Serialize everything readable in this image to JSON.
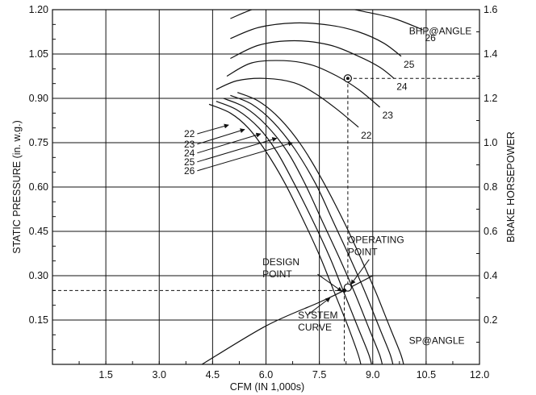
{
  "chart_data": {
    "type": "line",
    "xlabel": "CFM (IN 1,000s)",
    "ylabel_left": "STATIC PRESSURE (in. w.g.)",
    "ylabel_right": "BRAKE HORSEPOWER",
    "xlim": [
      0,
      12
    ],
    "ylim_left": [
      0,
      1.2
    ],
    "ylim_right": [
      0,
      1.6
    ],
    "x_ticks": [
      "1.5",
      "3.0",
      "4.5",
      "6.0",
      "7.5",
      "9.0",
      "10.5",
      "12.0"
    ],
    "y_ticks_left": [
      "0.15",
      "0.30",
      "0.45",
      "0.60",
      "0.75",
      "0.90",
      "1.05",
      "1.20"
    ],
    "y_ticks_right": [
      "0.2",
      "0.4",
      "0.6",
      "0.8",
      "1.0",
      "1.2",
      "1.4",
      "1.6"
    ],
    "grid": true,
    "sp_title": "SP@ANGLE",
    "bhp_title": "BHP@ANGLE",
    "sp_labels": [
      "22",
      "23",
      "24",
      "25",
      "26"
    ],
    "sp_series": [
      {
        "name": "22",
        "points": [
          [
            4.4,
            0.88
          ],
          [
            5.0,
            0.85
          ],
          [
            5.5,
            0.8
          ],
          [
            6.0,
            0.72
          ],
          [
            6.5,
            0.62
          ],
          [
            7.0,
            0.5
          ],
          [
            7.5,
            0.37
          ],
          [
            7.9,
            0.25
          ],
          [
            8.3,
            0.13
          ],
          [
            8.6,
            0.03
          ],
          [
            8.7,
            -0.02
          ]
        ]
      },
      {
        "name": "23",
        "points": [
          [
            4.6,
            0.89
          ],
          [
            5.2,
            0.86
          ],
          [
            5.8,
            0.8
          ],
          [
            6.3,
            0.72
          ],
          [
            6.8,
            0.61
          ],
          [
            7.3,
            0.49
          ],
          [
            7.8,
            0.36
          ],
          [
            8.2,
            0.24
          ],
          [
            8.6,
            0.12
          ],
          [
            8.9,
            0.03
          ],
          [
            9.0,
            -0.02
          ]
        ]
      },
      {
        "name": "24",
        "points": [
          [
            4.8,
            0.9
          ],
          [
            5.4,
            0.87
          ],
          [
            6.0,
            0.81
          ],
          [
            6.6,
            0.72
          ],
          [
            7.1,
            0.61
          ],
          [
            7.6,
            0.48
          ],
          [
            8.1,
            0.35
          ],
          [
            8.5,
            0.24
          ],
          [
            8.9,
            0.12
          ],
          [
            9.2,
            0.03
          ],
          [
            9.3,
            -0.02
          ]
        ]
      },
      {
        "name": "25",
        "points": [
          [
            5.0,
            0.91
          ],
          [
            5.6,
            0.88
          ],
          [
            6.2,
            0.82
          ],
          [
            6.8,
            0.73
          ],
          [
            7.4,
            0.61
          ],
          [
            7.9,
            0.48
          ],
          [
            8.4,
            0.35
          ],
          [
            8.8,
            0.24
          ],
          [
            9.2,
            0.12
          ],
          [
            9.5,
            0.03
          ],
          [
            9.6,
            -0.02
          ]
        ]
      },
      {
        "name": "26",
        "points": [
          [
            5.2,
            0.92
          ],
          [
            5.8,
            0.89
          ],
          [
            6.4,
            0.83
          ],
          [
            7.0,
            0.74
          ],
          [
            7.6,
            0.62
          ],
          [
            8.2,
            0.48
          ],
          [
            8.7,
            0.35
          ],
          [
            9.1,
            0.24
          ],
          [
            9.5,
            0.12
          ],
          [
            9.8,
            0.03
          ],
          [
            9.9,
            -0.02
          ]
        ]
      }
    ],
    "bhp_series": [
      {
        "name": "22",
        "points": [
          [
            4.6,
            1.24
          ],
          [
            5.2,
            1.28
          ],
          [
            6.0,
            1.29
          ],
          [
            6.8,
            1.27
          ],
          [
            7.4,
            1.22
          ],
          [
            8.0,
            1.15
          ],
          [
            8.6,
            1.07
          ]
        ]
      },
      {
        "name": "23",
        "points": [
          [
            4.9,
            1.3
          ],
          [
            5.6,
            1.36
          ],
          [
            6.5,
            1.37
          ],
          [
            7.3,
            1.35
          ],
          [
            8.0,
            1.3
          ],
          [
            8.6,
            1.24
          ],
          [
            9.2,
            1.16
          ]
        ]
      },
      {
        "name": "24",
        "points": [
          [
            5.0,
            1.38
          ],
          [
            5.8,
            1.44
          ],
          [
            6.8,
            1.46
          ],
          [
            7.8,
            1.44
          ],
          [
            8.6,
            1.39
          ],
          [
            9.2,
            1.34
          ],
          [
            9.6,
            1.29
          ]
        ]
      },
      {
        "name": "25",
        "points": [
          [
            5.0,
            1.47
          ],
          [
            5.8,
            1.52
          ],
          [
            6.8,
            1.54
          ],
          [
            7.8,
            1.53
          ],
          [
            8.6,
            1.5
          ],
          [
            9.3,
            1.45
          ],
          [
            9.8,
            1.39
          ]
        ]
      },
      {
        "name": "26",
        "points": [
          [
            5.0,
            1.56
          ],
          [
            5.8,
            1.61
          ],
          [
            6.8,
            1.63
          ],
          [
            7.8,
            1.62
          ],
          [
            8.8,
            1.59
          ],
          [
            9.6,
            1.56
          ],
          [
            10.4,
            1.51
          ]
        ]
      }
    ],
    "system_curve": [
      [
        4.2,
        0.0
      ],
      [
        6.0,
        0.13
      ],
      [
        7.5,
        0.21
      ],
      [
        8.2,
        0.25
      ],
      [
        9.0,
        0.3
      ]
    ],
    "design_point": {
      "x": 8.2,
      "y": 0.25,
      "label": "DESIGN POINT"
    },
    "operating_point": {
      "x": 8.3,
      "y": 0.26,
      "label": "OPERATING POINT"
    },
    "bhp_point": {
      "x": 8.3,
      "y": 1.29
    },
    "system_curve_label": "SYSTEM CURVE"
  }
}
